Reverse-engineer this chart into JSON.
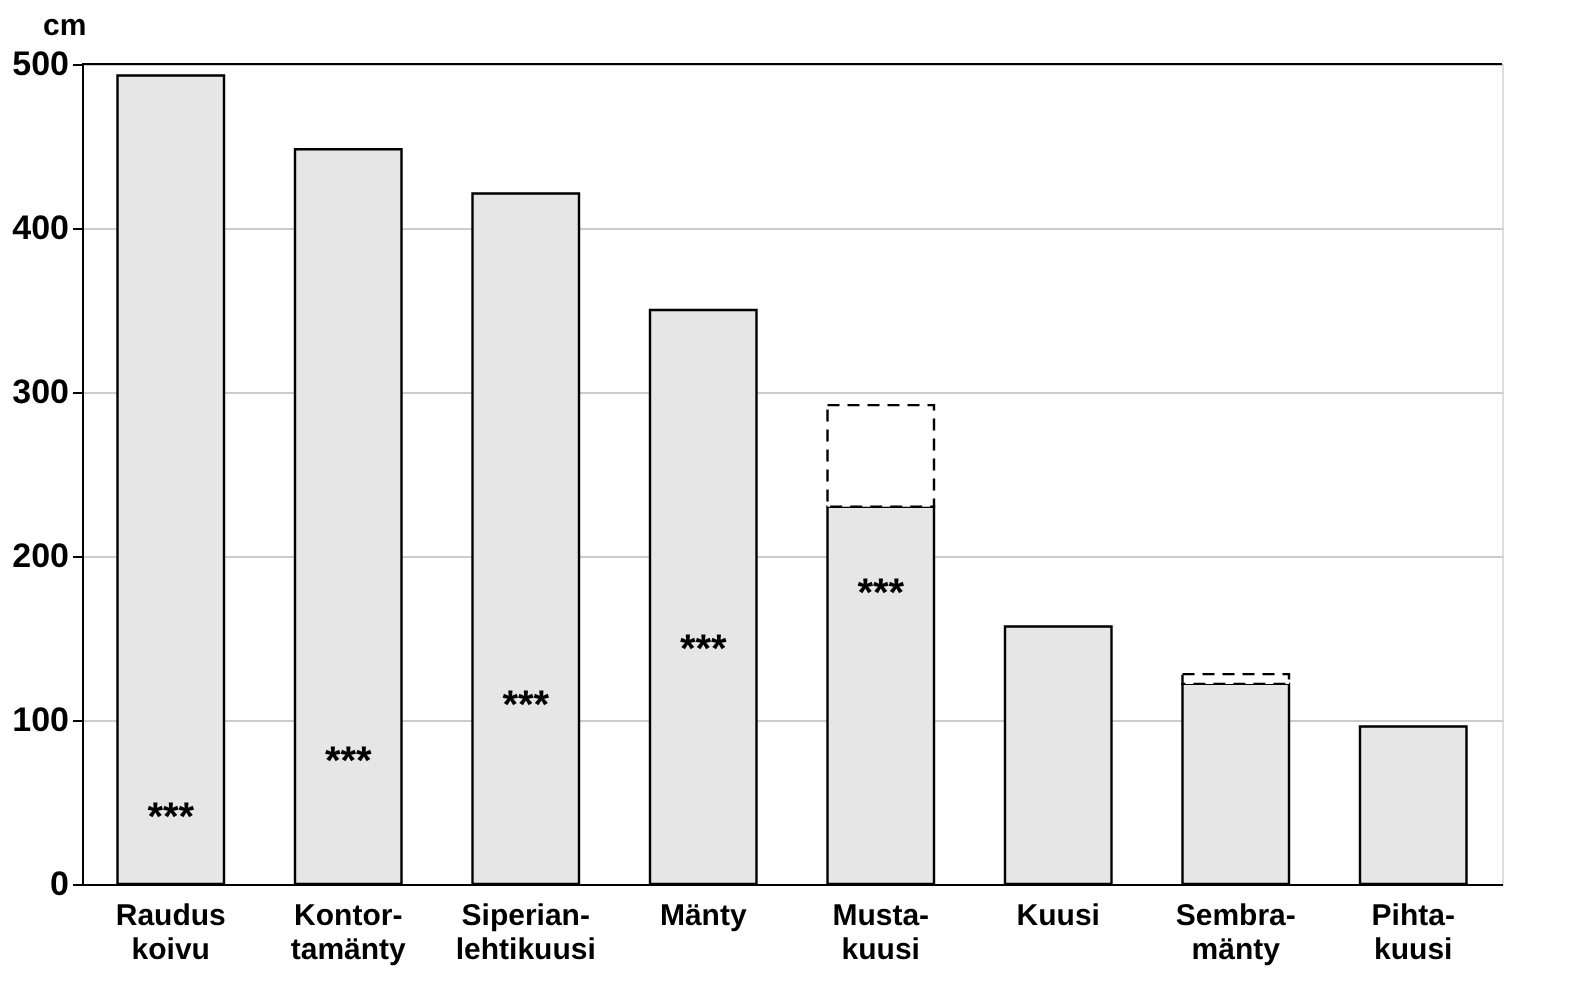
{
  "chart_data": {
    "type": "bar",
    "ylabel": "cm",
    "categories": [
      "Raudus\nkoivu",
      "Kontor-\ntamänty",
      "Siperian-\nlehtikuusi",
      "Mänty",
      "Musta-\nkuusi",
      "Kuusi",
      "Sembra-\nmänty",
      "Pihta-\nkuusi"
    ],
    "stacked": true,
    "series": [
      {
        "color": "#e6e6e6",
        "values": [
          493,
          448,
          421,
          350,
          230,
          157,
          122,
          96
        ]
      },
      {
        "color": "#ffffff",
        "line_style": "dashed",
        "values": [
          null,
          null,
          null,
          null,
          62,
          null,
          6,
          null
        ]
      }
    ],
    "ylim": [
      0,
      500
    ],
    "yticks": [
      0,
      100,
      200,
      300,
      400,
      500
    ],
    "grid": "y",
    "annotations": [
      "***",
      "***",
      "***",
      "***",
      "***"
    ]
  }
}
